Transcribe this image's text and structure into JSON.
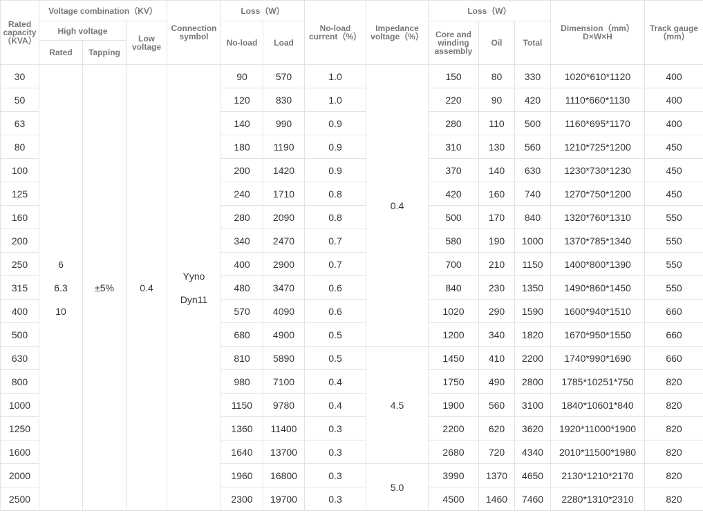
{
  "header": {
    "capacity": "Rated capacity（KVA）",
    "voltage_combination": "Voltage combination（KV）",
    "high_voltage": "High voltage",
    "rated": "Rated",
    "tapping": "Tapping",
    "low_voltage": "Low voltage",
    "connection": "Connection symbol",
    "loss": "Loss（W）",
    "no_load": "No-load",
    "load": "Load",
    "no_load_current": "No-load current（%）",
    "impedance": "Impedance voltage（%）",
    "loss_2": "Loss（W）",
    "core": "Core and winding assembly",
    "oil": "Oil",
    "total": "Total",
    "dimension": "Dimension（mm）",
    "dimension_sub": "D×W×H",
    "track_gauge": "Track gauge（mm）"
  },
  "merged": {
    "hv_rated": [
      "6",
      "6.3",
      "10"
    ],
    "tapping": "±5%",
    "low_voltage": "0.4",
    "connection": [
      "Yyno",
      "Dyn11"
    ],
    "impedance": [
      "0.4",
      "4.5",
      "5.0"
    ]
  },
  "rows": [
    [
      "30",
      "90",
      "570",
      "1.0",
      "150",
      "80",
      "330",
      "1020*610*1120",
      "400"
    ],
    [
      "50",
      "120",
      "830",
      "1.0",
      "220",
      "90",
      "420",
      "1110*660*1130",
      "400"
    ],
    [
      "63",
      "140",
      "990",
      "0.9",
      "280",
      "110",
      "500",
      "1160*695*1170",
      "400"
    ],
    [
      "80",
      "180",
      "1190",
      "0.9",
      "310",
      "130",
      "560",
      "1210*725*1200",
      "450"
    ],
    [
      "100",
      "200",
      "1420",
      "0.9",
      "370",
      "140",
      "630",
      "1230*730*1230",
      "450"
    ],
    [
      "125",
      "240",
      "1710",
      "0.8",
      "420",
      "160",
      "740",
      "1270*750*1200",
      "450"
    ],
    [
      "160",
      "280",
      "2090",
      "0.8",
      "500",
      "170",
      "840",
      "1320*760*1310",
      "550"
    ],
    [
      "200",
      "340",
      "2470",
      "0.7",
      "580",
      "190",
      "1000",
      "1370*785*1340",
      "550"
    ],
    [
      "250",
      "400",
      "2900",
      "0.7",
      "700",
      "210",
      "1150",
      "1400*800*1390",
      "550"
    ],
    [
      "315",
      "480",
      "3470",
      "0.6",
      "840",
      "230",
      "1350",
      "1490*860*1450",
      "550"
    ],
    [
      "400",
      "570",
      "4090",
      "0.6",
      "1020",
      "290",
      "1590",
      "1600*940*1510",
      "660"
    ],
    [
      "500",
      "680",
      "4900",
      "0.5",
      "1200",
      "340",
      "1820",
      "1670*950*1550",
      "660"
    ],
    [
      "630",
      "810",
      "5890",
      "0.5",
      "1450",
      "410",
      "2200",
      "1740*990*1690",
      "660"
    ],
    [
      "800",
      "980",
      "7100",
      "0.4",
      "1750",
      "490",
      "2800",
      "1785*10251*750",
      "820"
    ],
    [
      "1000",
      "1150",
      "9780",
      "0.4",
      "1900",
      "560",
      "3100",
      "1840*10601*840",
      "820"
    ],
    [
      "1250",
      "1360",
      "11400",
      "0.3",
      "2200",
      "620",
      "3620",
      "1920*11000*1900",
      "820"
    ],
    [
      "1600",
      "1640",
      "13700",
      "0.3",
      "2680",
      "720",
      "4340",
      "2010*11500*1980",
      "820"
    ],
    [
      "2000",
      "1960",
      "16800",
      "0.3",
      "3990",
      "1370",
      "4650",
      "2130*1210*2170",
      "820"
    ],
    [
      "2500",
      "2300",
      "19700",
      "0.3",
      "4500",
      "1460",
      "7460",
      "2280*1310*2310",
      "820"
    ]
  ]
}
